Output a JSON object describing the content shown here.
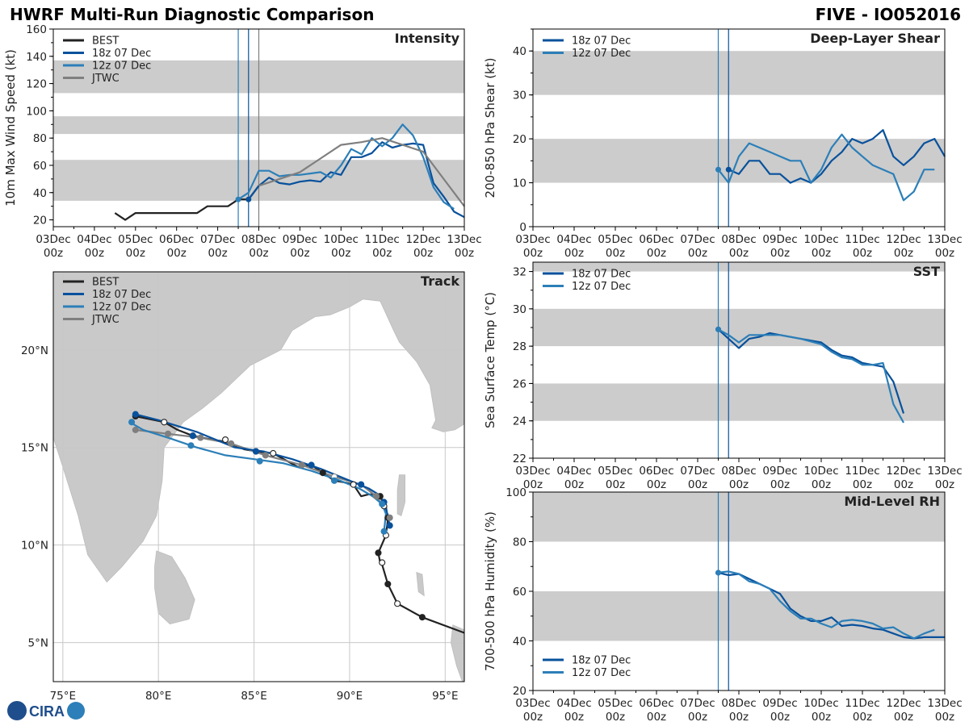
{
  "header": {
    "title": "HWRF Multi-Run Diagnostic Comparison",
    "storm": "FIVE - IO052016"
  },
  "logo": {
    "text": "CIRA"
  },
  "colors": {
    "best": "#222222",
    "run18z": "#08519c",
    "run12z": "#2c7fb8",
    "jtwc": "#7f7f7f",
    "band": "#cccccc",
    "grid": "#c8c8c8"
  },
  "time_ticks": [
    "03Dec\n00z",
    "04Dec\n00z",
    "05Dec\n00z",
    "06Dec\n00z",
    "07Dec\n00z",
    "08Dec\n00z",
    "09Dec\n00z",
    "10Dec\n00z",
    "11Dec\n00z",
    "12Dec\n00z",
    "13Dec\n00z"
  ],
  "chart_data": [
    {
      "id": "intensity",
      "type": "line",
      "title": "Intensity",
      "xlabel": "",
      "ylabel": "10m Max Wind Speed (kt)",
      "x_unit": "days since 03Dec 00z",
      "xlim": [
        0,
        10
      ],
      "ylim": [
        15,
        160
      ],
      "yticks": [
        20,
        40,
        60,
        80,
        100,
        120,
        140,
        160
      ],
      "bands": [
        [
          34,
          64
        ],
        [
          83,
          96
        ],
        [
          113,
          137
        ]
      ],
      "vlines": [
        {
          "x": 4.5,
          "series": "12z 07 Dec"
        },
        {
          "x": 4.75,
          "series": "18z 07 Dec"
        },
        {
          "x": 5.0,
          "series": "JTWC"
        }
      ],
      "legend": [
        "BEST",
        "18z 07 Dec",
        "12z 07 Dec",
        "JTWC"
      ],
      "series": [
        {
          "name": "BEST",
          "color": "#222222",
          "x": [
            1.5,
            1.75,
            2,
            2.25,
            2.5,
            2.75,
            3,
            3.25,
            3.5,
            3.75,
            4,
            4.25,
            4.5,
            4.75,
            5
          ],
          "y": [
            25,
            20,
            25,
            25,
            25,
            25,
            25,
            25,
            25,
            30,
            30,
            30,
            35,
            35,
            45
          ]
        },
        {
          "name": "18z 07 Dec",
          "color": "#08519c",
          "x": [
            4.75,
            5,
            5.25,
            5.5,
            5.75,
            6,
            6.25,
            6.5,
            6.75,
            7,
            7.25,
            7.5,
            7.75,
            8,
            8.25,
            8.5,
            8.75,
            9,
            9.25,
            9.5,
            9.75,
            10
          ],
          "y": [
            35,
            45,
            51,
            47,
            46,
            48,
            49,
            48,
            55,
            53,
            66,
            66,
            69,
            77,
            73,
            75,
            76,
            75,
            47,
            37,
            26,
            22
          ]
        },
        {
          "name": "12z 07 Dec",
          "color": "#2c7fb8",
          "x": [
            4.5,
            4.75,
            5,
            5.25,
            5.5,
            5.75,
            6,
            6.25,
            6.5,
            6.75,
            7,
            7.25,
            7.5,
            7.75,
            8,
            8.25,
            8.5,
            8.75,
            9,
            9.25,
            9.5,
            9.75
          ],
          "y": [
            35,
            40,
            56,
            56,
            52,
            53,
            53,
            54,
            55,
            51,
            60,
            72,
            68,
            80,
            74,
            80,
            90,
            82,
            66,
            44,
            33,
            28
          ]
        },
        {
          "name": "JTWC",
          "color": "#7f7f7f",
          "x": [
            5,
            5.5,
            6,
            6.5,
            7,
            7.5,
            8,
            8.5,
            9,
            9.5,
            10
          ],
          "y": [
            45,
            50,
            55,
            65,
            75,
            77,
            80,
            75,
            70,
            50,
            30
          ]
        }
      ]
    },
    {
      "id": "shear",
      "type": "line",
      "title": "Deep-Layer Shear",
      "xlabel": "",
      "ylabel": "200-850 hPa Shear (kt)",
      "xlim": [
        0,
        10
      ],
      "ylim": [
        0,
        45
      ],
      "yticks": [
        0,
        10,
        20,
        30,
        40
      ],
      "bands": [
        [
          10,
          20
        ],
        [
          30,
          40
        ]
      ],
      "vlines": [
        {
          "x": 4.5,
          "series": "12z 07 Dec"
        },
        {
          "x": 4.75,
          "series": "18z 07 Dec"
        }
      ],
      "legend": [
        "18z 07 Dec",
        "12z 07 Dec"
      ],
      "series": [
        {
          "name": "18z 07 Dec",
          "color": "#08519c",
          "x": [
            4.75,
            5,
            5.25,
            5.5,
            5.75,
            6,
            6.25,
            6.5,
            6.75,
            7,
            7.25,
            7.5,
            7.75,
            8,
            8.25,
            8.5,
            8.75,
            9,
            9.25,
            9.5,
            9.75,
            10
          ],
          "y": [
            13,
            12,
            15,
            15,
            12,
            12,
            10,
            11,
            10,
            12,
            15,
            17,
            20,
            19,
            20,
            22,
            16,
            14,
            16,
            19,
            20,
            16
          ]
        },
        {
          "name": "12z 07 Dec",
          "color": "#2c7fb8",
          "x": [
            4.5,
            4.75,
            5,
            5.25,
            5.5,
            5.75,
            6,
            6.25,
            6.5,
            6.75,
            7,
            7.25,
            7.5,
            7.75,
            8,
            8.25,
            8.5,
            8.75,
            9,
            9.25,
            9.5,
            9.75
          ],
          "y": [
            13,
            10,
            16,
            19,
            18,
            17,
            16,
            15,
            15,
            10,
            13,
            18,
            21,
            18,
            16,
            14,
            13,
            12,
            6,
            8,
            13,
            13
          ]
        }
      ]
    },
    {
      "id": "sst",
      "type": "line",
      "title": "SST",
      "xlabel": "",
      "ylabel": "Sea Surface Temp (°C)",
      "xlim": [
        0,
        10
      ],
      "ylim": [
        22,
        32.5
      ],
      "yticks": [
        22,
        24,
        26,
        28,
        30,
        32
      ],
      "bands": [
        [
          24,
          26
        ],
        [
          28,
          30
        ],
        [
          32,
          32.5
        ]
      ],
      "vlines": [
        {
          "x": 4.5,
          "series": "12z 07 Dec"
        },
        {
          "x": 4.75,
          "series": "18z 07 Dec"
        }
      ],
      "legend": [
        "18z 07 Dec",
        "12z 07 Dec"
      ],
      "series": [
        {
          "name": "18z 07 Dec",
          "color": "#08519c",
          "x": [
            4.5,
            4.75,
            5,
            5.25,
            5.5,
            5.75,
            6,
            6.5,
            7,
            7.25,
            7.5,
            7.75,
            8,
            8.25,
            8.5,
            8.75,
            9
          ],
          "y": [
            28.9,
            28.4,
            27.9,
            28.4,
            28.5,
            28.7,
            28.6,
            28.4,
            28.2,
            27.8,
            27.5,
            27.4,
            27.1,
            27.0,
            26.9,
            26.1,
            24.4
          ]
        },
        {
          "name": "12z 07 Dec",
          "color": "#2c7fb8",
          "x": [
            4.5,
            4.75,
            5,
            5.25,
            5.5,
            5.75,
            6,
            6.5,
            7,
            7.25,
            7.5,
            7.75,
            8,
            8.25,
            8.5,
            8.75,
            9
          ],
          "y": [
            28.9,
            28.6,
            28.2,
            28.6,
            28.6,
            28.6,
            28.6,
            28.4,
            28.1,
            27.7,
            27.4,
            27.3,
            27.0,
            27.0,
            27.1,
            24.9,
            23.9
          ]
        }
      ]
    },
    {
      "id": "rh",
      "type": "line",
      "title": "Mid-Level RH",
      "xlabel": "",
      "ylabel": "700-500 hPa Humidity (%)",
      "xlim": [
        0,
        10
      ],
      "ylim": [
        20,
        100
      ],
      "yticks": [
        20,
        40,
        60,
        80,
        100
      ],
      "bands": [
        [
          40,
          60
        ],
        [
          80,
          100
        ]
      ],
      "vlines": [
        {
          "x": 4.5,
          "series": "12z 07 Dec"
        },
        {
          "x": 4.75,
          "series": "18z 07 Dec"
        }
      ],
      "legend": [
        "18z 07 Dec",
        "12z 07 Dec"
      ],
      "series": [
        {
          "name": "18z 07 Dec",
          "color": "#08519c",
          "x": [
            4.5,
            4.75,
            5,
            5.25,
            5.5,
            5.75,
            6,
            6.25,
            6.5,
            6.75,
            7,
            7.25,
            7.5,
            7.75,
            8,
            8.25,
            8.5,
            8.75,
            9,
            9.25,
            9.5,
            9.75,
            10
          ],
          "y": [
            67.5,
            66.5,
            67,
            65,
            63,
            61,
            59,
            53,
            50,
            48,
            48,
            49.5,
            46,
            46.5,
            46,
            45,
            44.5,
            43,
            41.5,
            41,
            41.5,
            41.5,
            41.5
          ]
        },
        {
          "name": "12z 07 Dec",
          "color": "#2c7fb8",
          "x": [
            4.5,
            4.75,
            5,
            5.25,
            5.5,
            5.75,
            6,
            6.25,
            6.5,
            6.75,
            7,
            7.25,
            7.5,
            7.75,
            8,
            8.25,
            8.5,
            8.75,
            9,
            9.25,
            9.5,
            9.75
          ],
          "y": [
            67.5,
            68,
            67,
            64,
            63,
            61,
            56,
            52,
            49,
            49,
            47,
            45.5,
            48,
            48.5,
            48,
            47,
            45,
            45.5,
            43,
            41,
            43,
            44.5
          ]
        }
      ]
    },
    {
      "id": "track",
      "type": "line",
      "title": "Track",
      "xlabel": "",
      "ylabel": "",
      "xlim": [
        74.5,
        96
      ],
      "ylim": [
        3,
        24
      ],
      "xticks": [
        75,
        80,
        85,
        90,
        95
      ],
      "xtick_labels": [
        "75°E",
        "80°E",
        "85°E",
        "90°E",
        "95°E"
      ],
      "yticks": [
        5,
        10,
        15,
        20
      ],
      "ytick_labels": [
        "5°N",
        "10°N",
        "15°N",
        "20°N"
      ],
      "legend": [
        "BEST",
        "18z 07 Dec",
        "12z 07 Dec",
        "JTWC"
      ],
      "series": [
        {
          "name": "BEST",
          "color": "#222222",
          "lon": [
            96,
            93.8,
            92.5,
            92,
            91.7,
            91.6,
            91.5,
            91.9,
            92,
            91.9,
            91.8,
            91.6,
            91.3,
            91.0,
            90.6,
            90.2,
            89.8,
            89.2,
            88.6,
            88.0,
            87.3,
            86.0,
            85.1,
            84.5,
            83.5,
            82.8,
            81.8,
            81.0,
            80.3,
            79.8,
            79.3,
            78.8
          ],
          "lat": [
            5.5,
            6.3,
            7.0,
            8.0,
            9.0,
            9.1,
            9.6,
            10.5,
            11.3,
            12.0,
            12.0,
            12.5,
            12.6,
            12.6,
            12.5,
            13.1,
            13.2,
            13.3,
            13.7,
            14.1,
            14.0,
            14.7,
            14.8,
            14.9,
            15.3,
            15.4,
            15.6,
            15.9,
            16.3,
            16.4,
            16.5,
            16.6
          ],
          "points": [
            {
              "lon": 93.8,
              "lat": 6.3,
              "filled": true
            },
            {
              "lon": 92.5,
              "lat": 7.0,
              "filled": false
            },
            {
              "lon": 92.0,
              "lat": 8.0,
              "filled": true
            },
            {
              "lon": 91.7,
              "lat": 9.1,
              "filled": false
            },
            {
              "lon": 91.5,
              "lat": 9.6,
              "filled": true
            },
            {
              "lon": 91.9,
              "lat": 10.5,
              "filled": false
            },
            {
              "lon": 92.0,
              "lat": 11.4,
              "filled": true
            },
            {
              "lon": 91.8,
              "lat": 12.0,
              "filled": false
            },
            {
              "lon": 91.6,
              "lat": 12.5,
              "filled": true
            },
            {
              "lon": 90.2,
              "lat": 13.1,
              "filled": false
            },
            {
              "lon": 88.6,
              "lat": 13.7,
              "filled": true
            },
            {
              "lon": 86.0,
              "lat": 14.7,
              "filled": false
            },
            {
              "lon": 85.1,
              "lat": 14.8,
              "filled": true
            },
            {
              "lon": 83.5,
              "lat": 15.4,
              "filled": false
            },
            {
              "lon": 81.8,
              "lat": 15.6,
              "filled": true
            },
            {
              "lon": 80.3,
              "lat": 16.3,
              "filled": false
            },
            {
              "lon": 78.8,
              "lat": 16.6,
              "filled": true
            }
          ]
        },
        {
          "name": "JTWC",
          "color": "#7f7f7f",
          "lon": [
            92.1,
            91.8,
            91.4,
            90.6,
            89.2,
            87.5,
            85.6,
            83.8,
            82.2,
            80.5,
            78.8
          ],
          "lat": [
            11.4,
            11.9,
            12.5,
            13.1,
            13.5,
            14.1,
            14.6,
            15.2,
            15.5,
            15.7,
            15.9
          ],
          "points": [
            {
              "lon": 92.1,
              "lat": 11.4,
              "filled": true
            },
            {
              "lon": 91.4,
              "lat": 12.5,
              "filled": true
            },
            {
              "lon": 90.6,
              "lat": 13.1,
              "filled": true
            },
            {
              "lon": 89.2,
              "lat": 13.5,
              "filled": false
            },
            {
              "lon": 87.5,
              "lat": 14.1,
              "filled": true
            },
            {
              "lon": 85.6,
              "lat": 14.6,
              "filled": true
            },
            {
              "lon": 83.8,
              "lat": 15.2,
              "filled": true
            },
            {
              "lon": 82.2,
              "lat": 15.5,
              "filled": true
            },
            {
              "lon": 80.5,
              "lat": 15.7,
              "filled": true
            },
            {
              "lon": 78.8,
              "lat": 15.9,
              "filled": true
            }
          ]
        },
        {
          "name": "18z 07 Dec",
          "color": "#08519c",
          "lon": [
            92.1,
            91.9,
            91.8,
            91.5,
            91.0,
            90.0,
            88.5,
            87.0,
            85.5,
            84.0,
            82.0,
            80.0,
            78.8
          ],
          "lat": [
            11.0,
            11.9,
            12.2,
            12.6,
            12.9,
            13.3,
            13.9,
            14.4,
            14.8,
            15.0,
            15.8,
            16.4,
            16.7
          ],
          "points": [
            {
              "lon": 92.1,
              "lat": 11.0,
              "filled": true
            },
            {
              "lon": 91.8,
              "lat": 12.2,
              "filled": true
            },
            {
              "lon": 90.6,
              "lat": 13.1,
              "filled": true
            },
            {
              "lon": 88.0,
              "lat": 14.1,
              "filled": true
            },
            {
              "lon": 85.1,
              "lat": 14.8,
              "filled": true
            },
            {
              "lon": 81.8,
              "lat": 15.6,
              "filled": true
            },
            {
              "lon": 78.8,
              "lat": 16.7,
              "filled": true
            }
          ]
        },
        {
          "name": "12z 07 Dec",
          "color": "#2c7fb8",
          "lon": [
            91.8,
            91.9,
            91.7,
            91.2,
            90.5,
            89.5,
            88.0,
            86.5,
            85.0,
            83.5,
            82.0,
            80.5,
            79.2,
            78.5
          ],
          "lat": [
            10.7,
            11.6,
            12.1,
            12.5,
            12.9,
            13.3,
            13.8,
            14.2,
            14.4,
            14.6,
            15.0,
            15.5,
            15.9,
            16.3
          ],
          "points": [
            {
              "lon": 91.8,
              "lat": 10.7,
              "filled": true
            },
            {
              "lon": 91.7,
              "lat": 12.1,
              "filled": true
            },
            {
              "lon": 89.2,
              "lat": 13.3,
              "filled": true
            },
            {
              "lon": 85.3,
              "lat": 14.3,
              "filled": true
            },
            {
              "lon": 81.7,
              "lat": 15.1,
              "filled": true
            },
            {
              "lon": 78.6,
              "lat": 16.3,
              "filled": true
            }
          ]
        }
      ]
    }
  ]
}
